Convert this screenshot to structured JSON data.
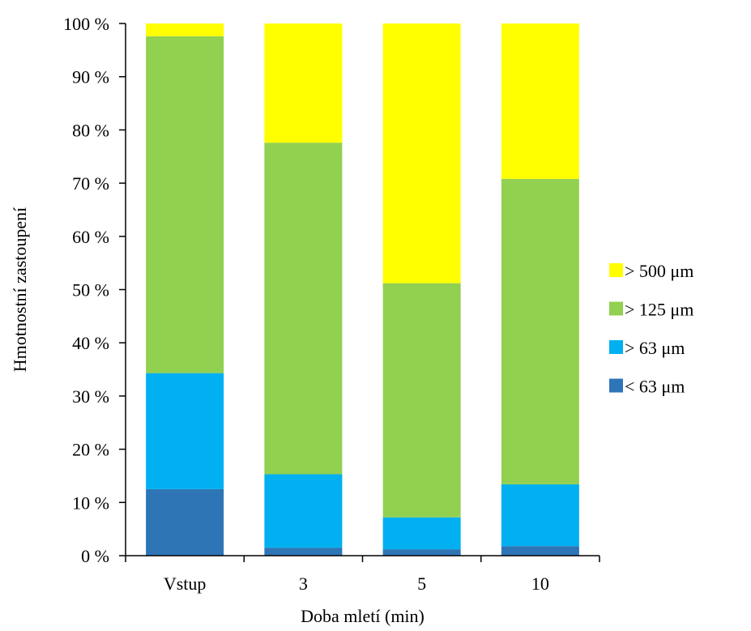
{
  "chart_data": {
    "type": "bar",
    "stacked": true,
    "percent": true,
    "categories": [
      "Vstup",
      "3",
      "5",
      "10"
    ],
    "series": [
      {
        "name": "< 63 μm",
        "color": "#2E75B6",
        "values": [
          12.5,
          1.5,
          1.2,
          1.8
        ]
      },
      {
        "name": "> 63 μm",
        "color": "#00B0F0",
        "values": [
          21.8,
          13.8,
          6.0,
          11.6
        ]
      },
      {
        "name": "> 125 μm",
        "color": "#92D050",
        "values": [
          63.3,
          62.3,
          44.0,
          57.4
        ]
      },
      {
        "name": "> 500 μm",
        "color": "#FFFF00",
        "values": [
          2.4,
          22.4,
          48.8,
          29.2
        ]
      }
    ],
    "xlabel": "Doba mletí (min)",
    "ylabel": "Hmotnostní zastoupení",
    "ylim": [
      0,
      100
    ],
    "yticks": [
      "0 %",
      "10 %",
      "20 %",
      "30 %",
      "40 %",
      "50 %",
      "60 %",
      "70 %",
      "80 %",
      "90 %",
      "100 %"
    ],
    "grid": false,
    "legend_position": "right"
  }
}
